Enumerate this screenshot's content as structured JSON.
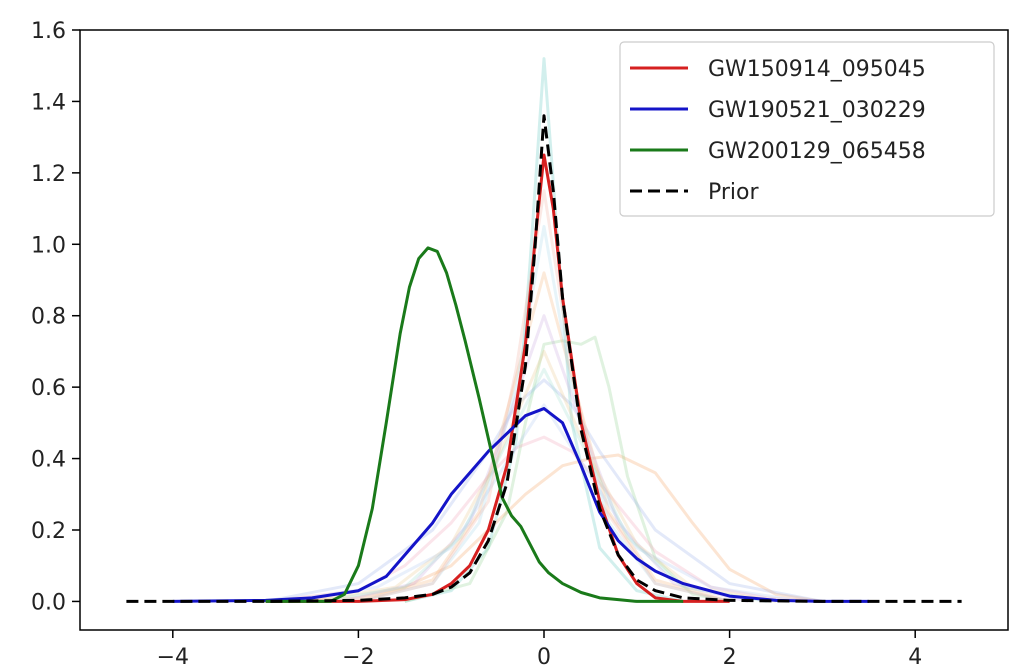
{
  "chart_data": {
    "type": "line",
    "title": "",
    "xlabel": "",
    "ylabel": "",
    "xlim": [
      -5,
      5
    ],
    "ylim": [
      -0.08,
      1.6
    ],
    "xticks": [
      -4,
      -2,
      0,
      2,
      4
    ],
    "xtick_labels": [
      "−4",
      "−2",
      "0",
      "2",
      "4"
    ],
    "yticks": [
      0,
      0.2,
      0.4,
      0.6,
      0.8,
      1.0,
      1.2,
      1.4,
      1.6
    ],
    "ytick_labels": [
      "0.0",
      "0.2",
      "0.4",
      "0.6",
      "0.8",
      "1.0",
      "1.2",
      "1.4",
      "1.6"
    ],
    "grid": false,
    "legend_position": "top-right",
    "series": [
      {
        "name": "GW150914_095045",
        "color": "#d62020",
        "style": "solid",
        "x": [
          -3.0,
          -2.0,
          -1.5,
          -1.2,
          -1.0,
          -0.8,
          -0.6,
          -0.4,
          -0.2,
          -0.1,
          0.0,
          0.1,
          0.2,
          0.4,
          0.6,
          0.8,
          1.0,
          1.2,
          1.5,
          2.0
        ],
        "y": [
          0.0,
          0.0,
          0.005,
          0.02,
          0.05,
          0.1,
          0.2,
          0.38,
          0.72,
          1.0,
          1.25,
          1.1,
          0.85,
          0.5,
          0.28,
          0.13,
          0.05,
          0.01,
          0.0,
          0.0
        ]
      },
      {
        "name": "GW190521_030229",
        "color": "#1414c8",
        "style": "solid",
        "x": [
          -4.0,
          -3.0,
          -2.5,
          -2.0,
          -1.7,
          -1.5,
          -1.2,
          -1.0,
          -0.8,
          -0.6,
          -0.4,
          -0.2,
          0.0,
          0.2,
          0.4,
          0.6,
          0.8,
          1.0,
          1.2,
          1.5,
          2.0,
          2.5,
          3.0,
          3.5
        ],
        "y": [
          0.0,
          0.003,
          0.01,
          0.03,
          0.07,
          0.13,
          0.22,
          0.3,
          0.36,
          0.42,
          0.47,
          0.52,
          0.54,
          0.5,
          0.38,
          0.25,
          0.17,
          0.12,
          0.085,
          0.05,
          0.015,
          0.003,
          0.0,
          0.0
        ]
      },
      {
        "name": "GW200129_065458",
        "color": "#1a7a1a",
        "style": "solid",
        "x": [
          -3.0,
          -2.3,
          -2.15,
          -2.0,
          -1.85,
          -1.7,
          -1.55,
          -1.45,
          -1.35,
          -1.25,
          -1.15,
          -1.05,
          -0.95,
          -0.85,
          -0.7,
          -0.55,
          -0.45,
          -0.35,
          -0.25,
          -0.15,
          -0.05,
          0.05,
          0.2,
          0.4,
          0.6,
          0.8,
          1.0,
          1.5
        ],
        "y": [
          0.0,
          0.0,
          0.02,
          0.1,
          0.26,
          0.5,
          0.75,
          0.88,
          0.96,
          0.99,
          0.98,
          0.92,
          0.83,
          0.73,
          0.57,
          0.4,
          0.29,
          0.24,
          0.21,
          0.16,
          0.11,
          0.08,
          0.05,
          0.025,
          0.01,
          0.005,
          0.0,
          0.0
        ]
      },
      {
        "name": "Prior",
        "color": "#000000",
        "style": "dashed",
        "x": [
          -4.5,
          -3.0,
          -2.0,
          -1.5,
          -1.2,
          -1.0,
          -0.8,
          -0.6,
          -0.4,
          -0.2,
          -0.1,
          0.0,
          0.1,
          0.2,
          0.4,
          0.6,
          0.8,
          1.0,
          1.2,
          1.5,
          2.0,
          3.0,
          4.5
        ],
        "y": [
          0.0,
          0.0,
          0.003,
          0.01,
          0.02,
          0.04,
          0.08,
          0.17,
          0.33,
          0.66,
          0.98,
          1.36,
          1.15,
          0.85,
          0.48,
          0.26,
          0.13,
          0.06,
          0.03,
          0.01,
          0.003,
          0.0,
          0.0
        ]
      }
    ],
    "background_series": [
      {
        "color": "#5fc7c0",
        "x": [
          -1.5,
          -1.0,
          -0.6,
          -0.3,
          -0.15,
          0.0,
          0.15,
          0.3,
          0.6,
          1.0,
          1.5
        ],
        "y": [
          0.0,
          0.03,
          0.15,
          0.45,
          0.95,
          1.52,
          1.0,
          0.5,
          0.15,
          0.03,
          0.0
        ]
      },
      {
        "color": "#f4a060",
        "x": [
          -3.0,
          -2.0,
          -1.5,
          -1.0,
          -0.6,
          -0.2,
          0.2,
          0.5,
          0.8,
          1.2,
          1.6,
          2.0,
          2.5,
          3.0
        ],
        "y": [
          0.0,
          0.01,
          0.04,
          0.1,
          0.2,
          0.3,
          0.38,
          0.4,
          0.41,
          0.36,
          0.22,
          0.09,
          0.02,
          0.0
        ]
      },
      {
        "color": "#8fd08f",
        "x": [
          -1.5,
          -0.8,
          -0.4,
          -0.2,
          0.0,
          0.2,
          0.4,
          0.55,
          0.7,
          0.9,
          1.2,
          1.6,
          2.0
        ],
        "y": [
          0.0,
          0.05,
          0.25,
          0.5,
          0.72,
          0.73,
          0.72,
          0.74,
          0.6,
          0.35,
          0.12,
          0.02,
          0.0
        ]
      },
      {
        "color": "#f0a0b8",
        "x": [
          -3.0,
          -2.0,
          -1.5,
          -1.0,
          -0.6,
          -0.3,
          0.0,
          0.3,
          0.7,
          1.2,
          1.8,
          2.4,
          3.0
        ],
        "y": [
          0.0,
          0.03,
          0.1,
          0.22,
          0.35,
          0.43,
          0.46,
          0.42,
          0.3,
          0.14,
          0.04,
          0.01,
          0.0
        ]
      },
      {
        "color": "#9ab0e8",
        "x": [
          -3.0,
          -2.0,
          -1.2,
          -0.6,
          -0.3,
          0.0,
          0.3,
          0.6,
          1.2,
          2.0,
          3.0
        ],
        "y": [
          0.0,
          0.05,
          0.2,
          0.42,
          0.55,
          0.62,
          0.55,
          0.42,
          0.2,
          0.05,
          0.0
        ]
      },
      {
        "color": "#f4b27a",
        "x": [
          -2.0,
          -1.2,
          -0.7,
          -0.35,
          0.0,
          0.35,
          0.7,
          1.2,
          2.0
        ],
        "y": [
          0.0,
          0.06,
          0.25,
          0.58,
          0.92,
          0.58,
          0.25,
          0.06,
          0.0
        ]
      },
      {
        "color": "#c8a8e0",
        "x": [
          -2.2,
          -1.4,
          -0.8,
          -0.4,
          0.0,
          0.4,
          0.8,
          1.4,
          2.2
        ],
        "y": [
          0.0,
          0.05,
          0.22,
          0.5,
          0.8,
          0.5,
          0.22,
          0.05,
          0.0
        ]
      },
      {
        "color": "#a8d8e8",
        "x": [
          -2.0,
          -1.2,
          -0.7,
          -0.3,
          0.0,
          0.3,
          0.7,
          1.2,
          2.0
        ],
        "y": [
          0.0,
          0.05,
          0.22,
          0.6,
          1.05,
          0.6,
          0.22,
          0.05,
          0.0
        ]
      },
      {
        "color": "#e8c890",
        "x": [
          -2.5,
          -1.6,
          -1.0,
          -0.5,
          0.0,
          0.5,
          1.0,
          1.6,
          2.5
        ],
        "y": [
          0.0,
          0.04,
          0.16,
          0.4,
          0.7,
          0.4,
          0.16,
          0.04,
          0.0
        ]
      },
      {
        "color": "#b0c8f0",
        "x": [
          -2.8,
          -1.8,
          -1.0,
          -0.5,
          0.0,
          0.5,
          1.0,
          1.8,
          2.8
        ],
        "y": [
          0.0,
          0.04,
          0.15,
          0.35,
          0.55,
          0.35,
          0.15,
          0.04,
          0.0
        ]
      },
      {
        "color": "#f0b0a0",
        "x": [
          -2.0,
          -1.2,
          -0.6,
          -0.3,
          0.0,
          0.3,
          0.6,
          1.2,
          2.0
        ],
        "y": [
          0.0,
          0.05,
          0.28,
          0.65,
          1.15,
          0.65,
          0.28,
          0.05,
          0.0
        ]
      },
      {
        "color": "#a0e0d0",
        "x": [
          -2.4,
          -1.5,
          -0.9,
          -0.45,
          0.0,
          0.45,
          0.9,
          1.5,
          2.4
        ],
        "y": [
          0.0,
          0.04,
          0.18,
          0.42,
          0.65,
          0.42,
          0.18,
          0.04,
          0.0
        ]
      }
    ]
  }
}
